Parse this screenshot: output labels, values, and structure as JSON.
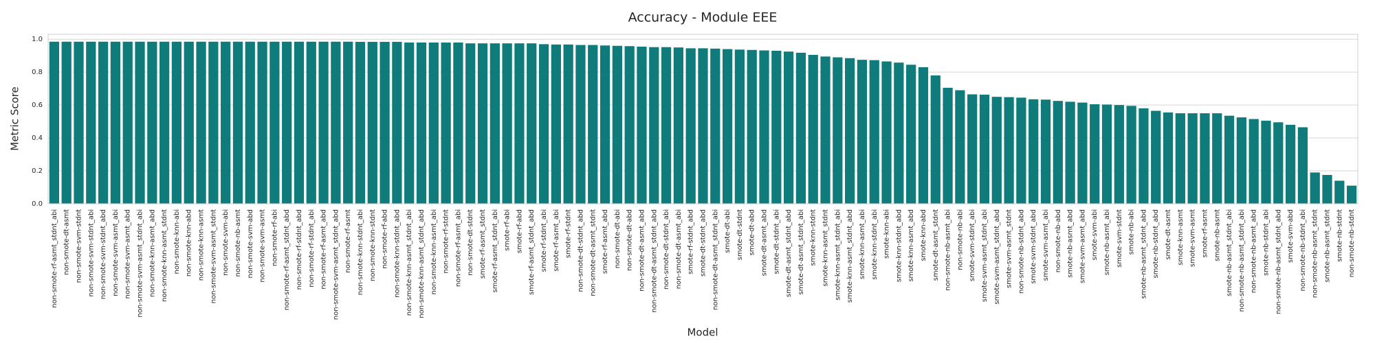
{
  "chart_data": {
    "type": "bar",
    "title": "Accuracy - Module EEE",
    "xlabel": "Model",
    "ylabel": "Metric Score",
    "color": "#0f7b7b",
    "grid": true,
    "ylim": [
      0,
      1.03
    ],
    "yticks": [
      {
        "value": 0,
        "label": "0.0"
      },
      0.2,
      0.4,
      0.6,
      0.8,
      {
        "value": 1,
        "label": "1.0"
      }
    ],
    "categories": [
      "non-smote-rf-asmt_stdnt_abi",
      "non-smote-dt-asmt",
      "non-smote-svm-stdnt",
      "non-smote-svm-stdnt_abi",
      "non-smote-svm-stdnt_abd",
      "non-smote-svm-asmt_abi",
      "non-smote-svm-asmt_abd",
      "non-smote-svm-asmt_stdnt_abi",
      "non-smote-knn-asmt_abd",
      "non-smote-knn-asmt_stdnt",
      "non-smote-knn-abi",
      "non-smote-knn-abd",
      "non-smote-knn-asmt",
      "non-smote-svm-asmt_stdnt",
      "non-smote-svm-abi",
      "non-smote-nb-asmt",
      "non-smote-svm-abd",
      "non-smote-svm-asmt",
      "non-smote-rf-abi",
      "non-smote-rf-asmt_stdnt_abd",
      "non-smote-rf-stdnt_abd",
      "non-smote-rf-stdnt_abi",
      "non-smote-rf-asmt_abd",
      "non-smote-svm-asmt_stdnt_abd",
      "non-smote-rf-asmt",
      "non-smote-knn-stdnt_abi",
      "non-smote-knn-stdnt",
      "non-smote-rf-abd",
      "non-smote-knn-stdnt_abd",
      "non-smote-knn-asmt_stdnt_abi",
      "non-smote-knn-asmt_stdnt_abd",
      "non-smote-knn-asmt_abi",
      "non-smote-rf-stdnt",
      "non-smote-rf-asmt_abi",
      "non-smote-dt-stdnt",
      "smote-rf-asmt_stdnt",
      "smote-rf-asmt_stdnt_abi",
      "smote-rf-abi",
      "smote-rf-abd",
      "smote-rf-asmt_stdnt_abd",
      "smote-rf-stdnt_abi",
      "smote-rf-asmt_abi",
      "smote-rf-stdnt",
      "non-smote-dt-stdnt_abd",
      "non-smote-dt-asmt_stdnt",
      "smote-rf-asmt_abd",
      "non-smote-dt-abi",
      "non-smote-dt-abd",
      "non-smote-dt-asmt_abd",
      "non-smote-dt-asmt_stdnt_abd",
      "non-smote-dt-stdnt_abi",
      "non-smote-dt-asmt_abi",
      "smote-rf-stdnt_abd",
      "smote-dt-stdnt_abd",
      "non-smote-dt-asmt_stdnt_abi",
      "smote-dt-abi",
      "smote-dt-stdnt",
      "smote-dt-abd",
      "smote-dt-asmt_abd",
      "smote-dt-stdnt_abi",
      "smote-dt-asmt_stdnt_abd",
      "smote-dt-asmt_stdnt_abi",
      "smote-knn-stdnt",
      "smote-knn-asmt_stdnt",
      "smote-knn-asmt_stdnt_abi",
      "smote-knn-asmt_stdnt_abd",
      "smote-knn-asmt_abi",
      "smote-knn-stdnt_abi",
      "smote-knn-abi",
      "smote-knn-stdnt_abd",
      "smote-knn-asmt_abd",
      "smote-knn-abd",
      "smote-dt-asmt_stdnt",
      "non-smote-nb-asmt_abi",
      "non-smote-nb-abi",
      "smote-svm-stdnt_abi",
      "smote-svm-asmt_stdnt_abi",
      "smote-svm-asmt_stdnt_abd",
      "smote-svm-asmt_stdnt",
      "non-smote-nb-stdnt_abd",
      "smote-svm-stdnt_abd",
      "smote-svm-asmt_abi",
      "non-smote-nb-abd",
      "smote-nb-asmt_abd",
      "smote-svm-asmt_abd",
      "smote-svm-abi",
      "smote-nb-asmt_abi",
      "smote-svm-stdnt",
      "smote-nb-abi",
      "smote-nb-asmt_stdnt_abd",
      "smote-nb-stdnt_abd",
      "smote-dt-asmt",
      "smote-knn-asmt",
      "smote-svm-asmt",
      "smote-rf-asmt",
      "smote-nb-asmt",
      "smote-nb-asmt_stdnt_abi",
      "non-smote-nb-asmt_stdnt_abi",
      "non-smote-nb-asmt_abd",
      "smote-nb-stdnt_abi",
      "non-smote-nb-asmt_stdnt_abd",
      "smote-svm-abd",
      "non-smote-nb-stdnt_abi",
      "non-smote-nb-asmt_stdnt",
      "smote-nb-asmt_stdnt",
      "smote-nb-stdnt",
      "non-smote-nb-stdnt"
    ],
    "values": [
      0.985,
      0.985,
      0.985,
      0.985,
      0.985,
      0.985,
      0.985,
      0.985,
      0.985,
      0.985,
      0.985,
      0.985,
      0.985,
      0.985,
      0.985,
      0.985,
      0.985,
      0.985,
      0.985,
      0.985,
      0.985,
      0.985,
      0.985,
      0.985,
      0.985,
      0.984,
      0.984,
      0.984,
      0.984,
      0.98,
      0.98,
      0.98,
      0.98,
      0.98,
      0.975,
      0.975,
      0.975,
      0.975,
      0.975,
      0.975,
      0.97,
      0.968,
      0.968,
      0.965,
      0.965,
      0.962,
      0.96,
      0.958,
      0.955,
      0.952,
      0.952,
      0.95,
      0.945,
      0.945,
      0.943,
      0.94,
      0.937,
      0.935,
      0.932,
      0.93,
      0.925,
      0.918,
      0.905,
      0.895,
      0.89,
      0.885,
      0.875,
      0.873,
      0.865,
      0.858,
      0.845,
      0.83,
      0.78,
      0.705,
      0.69,
      0.665,
      0.663,
      0.65,
      0.648,
      0.645,
      0.635,
      0.633,
      0.625,
      0.62,
      0.615,
      0.605,
      0.603,
      0.6,
      0.595,
      0.58,
      0.565,
      0.555,
      0.55,
      0.55,
      0.55,
      0.55,
      0.535,
      0.525,
      0.515,
      0.505,
      0.495,
      0.48,
      0.465,
      0.19,
      0.175,
      0.14,
      0.11
    ]
  }
}
